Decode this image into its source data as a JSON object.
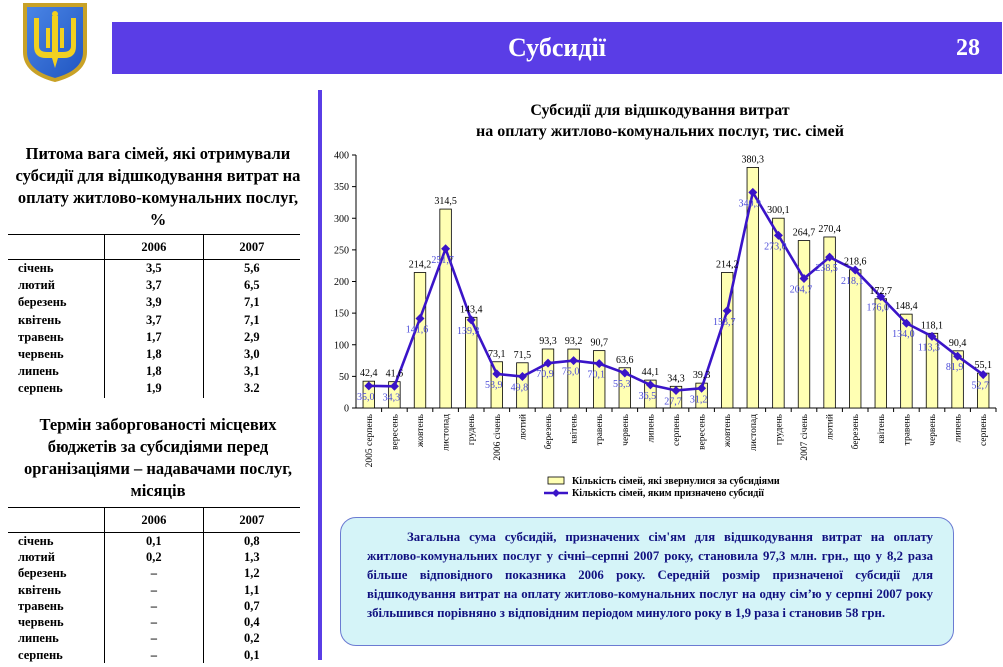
{
  "header": {
    "title": "Субсидії",
    "page_number": "28"
  },
  "colors": {
    "accent": "#5a3de6",
    "bar_fill": "#ffffb3",
    "line": "#3a14c8",
    "summary_bg": "#d5f4f8"
  },
  "table1": {
    "title": "Питома вага сімей, які отримували субсидії для відшкодування витрат на оплату житлово-комунальних послуг, %",
    "columns": [
      "2006",
      "2007"
    ],
    "rows": [
      {
        "month": "січень",
        "v2006": "3,5",
        "v2007": "5,6"
      },
      {
        "month": "лютий",
        "v2006": "3,7",
        "v2007": "6,5"
      },
      {
        "month": "березень",
        "v2006": "3,9",
        "v2007": "7,1"
      },
      {
        "month": "квітень",
        "v2006": "3,7",
        "v2007": "7,1"
      },
      {
        "month": "травень",
        "v2006": "1,7",
        "v2007": "2,9"
      },
      {
        "month": "червень",
        "v2006": "1,8",
        "v2007": "3,0"
      },
      {
        "month": "липень",
        "v2006": "1,8",
        "v2007": "3,1"
      },
      {
        "month": "серпень",
        "v2006": "1,9",
        "v2007": "3.2"
      }
    ]
  },
  "table2": {
    "title": "Термін заборгованості місцевих бюджетів за субсидіями перед організаціями – надавачами послуг, місяців",
    "columns": [
      "2006",
      "2007"
    ],
    "rows": [
      {
        "month": "січень",
        "v2006": "0,1",
        "v2007": "0,8"
      },
      {
        "month": "лютий",
        "v2006": "0,2",
        "v2007": "1,3"
      },
      {
        "month": "березень",
        "v2006": "–",
        "v2007": "1,2"
      },
      {
        "month": "квітень",
        "v2006": "–",
        "v2007": "1,1"
      },
      {
        "month": "травень",
        "v2006": "–",
        "v2007": "0,7"
      },
      {
        "month": "червень",
        "v2006": "–",
        "v2007": "0,4"
      },
      {
        "month": "липень",
        "v2006": "–",
        "v2007": "0,2"
      },
      {
        "month": "серпень",
        "v2006": "–",
        "v2007": "0,1"
      }
    ]
  },
  "chart_data": {
    "type": "bar",
    "title_line1": "Субсидії для відшкодування витрат",
    "title_line2": "на оплату житлово-комунальних послуг, тис. сімей",
    "categories": [
      "2005 серпень",
      "вересень",
      "жовтень",
      "листопад",
      "грудень",
      "2006 січень",
      "лютий",
      "березень",
      "квітень",
      "травень",
      "червень",
      "липень",
      "серпень",
      "вересень",
      "жовтень",
      "листопад",
      "грудень",
      "2007 січень",
      "лютий",
      "березень",
      "квітень",
      "травень",
      "червень",
      "липень",
      "серпень"
    ],
    "ylim": [
      0,
      400
    ],
    "yticks": [
      0,
      50,
      100,
      150,
      200,
      250,
      300,
      350,
      400
    ],
    "grid": false,
    "legend_position": "bottom",
    "series": [
      {
        "name": "Кількість сімей, які звернулися за субсидіями",
        "kind": "bar",
        "values": [
          42.4,
          41.6,
          214.2,
          314.5,
          143.4,
          73.1,
          71.5,
          93.3,
          93.2,
          90.7,
          63.6,
          44.1,
          34.3,
          39.3,
          214.2,
          380.3,
          300.1,
          264.7,
          270.4,
          218.6,
          172.7,
          148.4,
          118.1,
          90.4,
          55.1
        ],
        "labels": [
          "42,4",
          "41,6",
          "214,2",
          "314,5",
          "143,4",
          "73,1",
          "71,5",
          "93,3",
          "93,2",
          "90,7",
          "63,6",
          "44,1",
          "34,3",
          "39,3",
          "214,2",
          "380,3",
          "300,1",
          "264,7",
          "270,4",
          "218,6",
          "172,7",
          "148,4",
          "118,1",
          "90,4",
          "55,1"
        ]
      },
      {
        "name": "Кількість сімей, яким призначено субсидії",
        "kind": "line",
        "values": [
          35.0,
          34.3,
          141.6,
          251.7,
          139.3,
          53.9,
          49.8,
          70.9,
          75.0,
          70.1,
          55.3,
          36.5,
          27.7,
          31.2,
          153.7,
          340.9,
          273.0,
          204.7,
          238.5,
          218.1,
          176.0,
          134.0,
          113.3,
          81.9,
          52.7
        ],
        "labels": [
          "35,0",
          "34,3",
          "141,6",
          "251,7",
          "139,3",
          "53,9",
          "49,8",
          "70,9",
          "75,0",
          "70,1",
          "55,3",
          "36,5",
          "27,7",
          "31,2",
          "153,7",
          "340,9",
          "273,0",
          "204,7",
          "238,5",
          "218,1",
          "176,0",
          "134,0",
          "113,3",
          "81,9",
          "52,7"
        ]
      }
    ]
  },
  "summary_text": "Загальна сума субсидій, призначених сім'ям для відшкодування витрат на оплату житлово-комунальних послуг у січні–серпні 2007 року, становила 97,3 млн. грн., що у 8,2 раза більше відповідного показника 2006 року. Середній розмір призначеної субсидії для відшкодування витрат на оплату житлово-комунальних послуг на одну сім’ю у серпні 2007 року збільшився порівняно з відповідним періодом минулого року в 1,9 раза і становив 58 грн."
}
